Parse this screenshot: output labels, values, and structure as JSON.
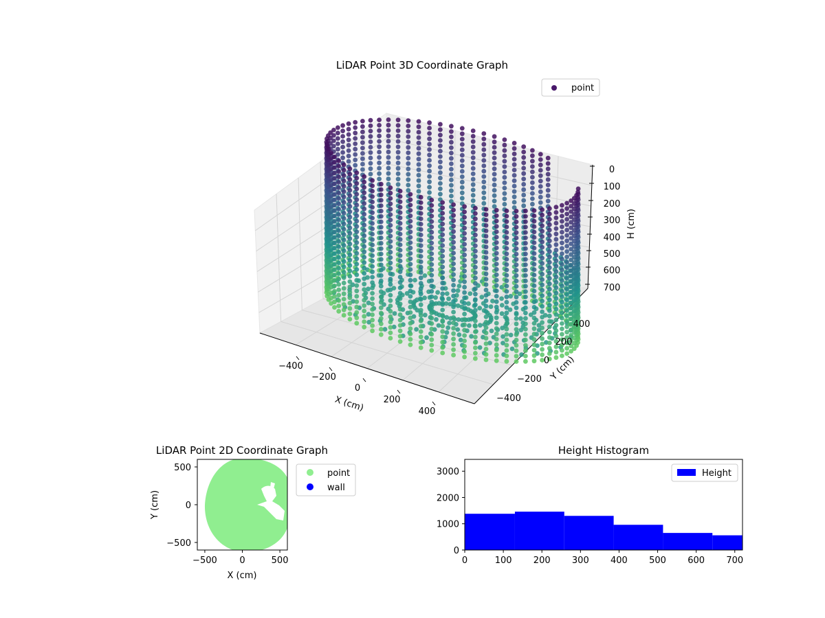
{
  "chart_data": [
    {
      "type": "scatter3d",
      "title": "LiDAR Point 3D Coordinate Graph",
      "xlabel": "X (cm)",
      "ylabel": "Y (cm)",
      "zlabel": "H (cm)",
      "x_ticks": [
        "−400",
        "−200",
        "0",
        "200",
        "400"
      ],
      "y_ticks": [
        "400",
        "200",
        "0",
        "−200",
        "−400"
      ],
      "z_ticks": [
        "0",
        "100",
        "200",
        "300",
        "400",
        "500",
        "600",
        "700"
      ],
      "zlim": [
        0,
        700
      ],
      "legend": {
        "label": "point",
        "color": "#48186a",
        "position": "upper-right"
      },
      "colormap": "viridis",
      "shape": "cylinder",
      "cylinder_radius": 550,
      "gaps_deg": [
        [
          300,
          325
        ],
        [
          315,
          330
        ]
      ],
      "grid": true
    },
    {
      "type": "scatter",
      "title": "LiDAR Point 2D Coordinate Graph",
      "xlabel": "X (cm)",
      "ylabel": "Y (cm)",
      "x_ticks": [
        "−500",
        "0",
        "500"
      ],
      "y_ticks": [
        "500",
        "0",
        "−500"
      ],
      "xlim": [
        -600,
        600
      ],
      "ylim": [
        -600,
        600
      ],
      "series": [
        {
          "name": "point",
          "color": "#90ee90"
        },
        {
          "name": "wall",
          "color": "#0000ff"
        }
      ],
      "legend": {
        "position": "outside-right"
      }
    },
    {
      "type": "bar",
      "title": "Height Histogram",
      "x_ticks": [
        "0",
        "100",
        "200",
        "300",
        "400",
        "500",
        "600",
        "700"
      ],
      "y_ticks": [
        "0",
        "1000",
        "2000",
        "3000"
      ],
      "xlim": [
        0,
        720
      ],
      "ylim": [
        0,
        3450
      ],
      "series": [
        {
          "name": "Height",
          "color": "#0000ff",
          "bins": [
            {
              "x0": 0,
              "x1": 130,
              "value": 1380
            },
            {
              "x0": 130,
              "x1": 258,
              "value": 1460
            },
            {
              "x0": 258,
              "x1": 386,
              "value": 1300
            },
            {
              "x0": 386,
              "x1": 514,
              "value": 960
            },
            {
              "x0": 514,
              "x1": 642,
              "value": 650
            },
            {
              "x0": 642,
              "x1": 720,
              "value": 560
            }
          ]
        }
      ],
      "legend": {
        "position": "upper-right"
      },
      "grid": false
    }
  ]
}
